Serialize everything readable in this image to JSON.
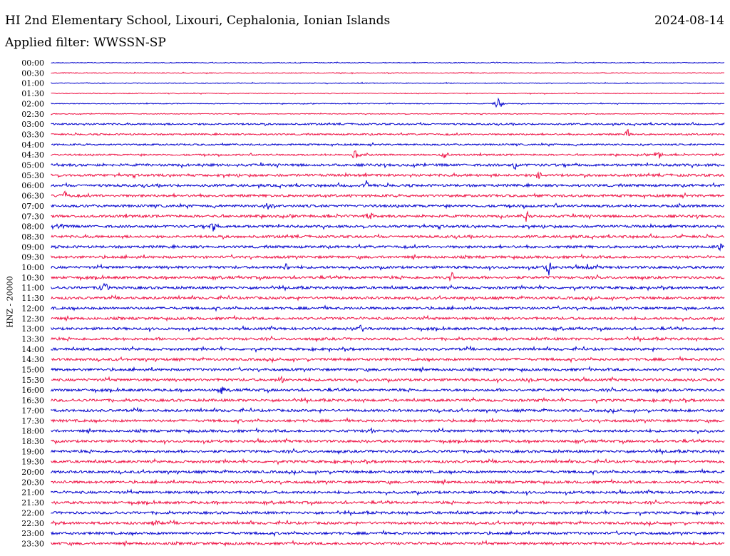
{
  "header": {
    "station": "HI 2nd Elementary School, Lixouri, Cephalonia, Ionian Islands",
    "date": "2024-08-14",
    "filter": "Applied filter: WWSSN-SP"
  },
  "chart_data": {
    "type": "line",
    "title": "HI 2nd Elementary School, Lixouri, Cephalonia, Ionian Islands",
    "ylabel": "HNZ - 20000",
    "xlabel": "",
    "grid": false,
    "colors": {
      "even": "#0000cc",
      "odd": "#ee1144"
    },
    "rows": [
      "00:00",
      "00:30",
      "01:00",
      "01:30",
      "02:00",
      "02:30",
      "03:00",
      "03:30",
      "04:00",
      "04:30",
      "05:00",
      "05:30",
      "06:00",
      "06:30",
      "07:00",
      "07:30",
      "08:00",
      "08:30",
      "09:00",
      "09:30",
      "10:00",
      "10:30",
      "11:00",
      "11:30",
      "12:00",
      "12:30",
      "13:00",
      "13:30",
      "14:00",
      "14:30",
      "15:00",
      "15:30",
      "16:00",
      "16:30",
      "17:00",
      "17:30",
      "18:00",
      "18:30",
      "19:00",
      "19:30",
      "20:00",
      "20:30",
      "21:00",
      "21:30",
      "22:00",
      "22:30",
      "23:00",
      "23:30"
    ],
    "noise_level": [
      1,
      1,
      1,
      1,
      1,
      1,
      2,
      2,
      2,
      2,
      3,
      3,
      3,
      3,
      3,
      3,
      3,
      3,
      3,
      3,
      3,
      3,
      3,
      3,
      3,
      3,
      3,
      3,
      3,
      3,
      3,
      3,
      3,
      3,
      3,
      3,
      3,
      3,
      3,
      3,
      3,
      3,
      3,
      3,
      3,
      3,
      3,
      3
    ],
    "events": [
      {
        "row": "02:00",
        "t": 0.665,
        "amp": 14
      },
      {
        "row": "03:30",
        "t": 0.857,
        "amp": 8
      },
      {
        "row": "04:30",
        "t": 0.452,
        "amp": 9
      },
      {
        "row": "04:30",
        "t": 0.585,
        "amp": 7
      },
      {
        "row": "04:30",
        "t": 0.902,
        "amp": 10
      },
      {
        "row": "05:00",
        "t": 0.69,
        "amp": 8
      },
      {
        "row": "05:30",
        "t": 0.723,
        "amp": 9
      },
      {
        "row": "06:00",
        "t": 0.468,
        "amp": 7
      },
      {
        "row": "06:30",
        "t": 0.02,
        "amp": 8
      },
      {
        "row": "07:00",
        "t": 0.32,
        "amp": 8
      },
      {
        "row": "07:30",
        "t": 0.473,
        "amp": 7
      },
      {
        "row": "07:30",
        "t": 0.707,
        "amp": 10
      },
      {
        "row": "08:00",
        "t": 0.012,
        "amp": 6
      },
      {
        "row": "08:00",
        "t": 0.24,
        "amp": 10
      },
      {
        "row": "09:00",
        "t": 0.995,
        "amp": 7
      },
      {
        "row": "10:00",
        "t": 0.35,
        "amp": 8
      },
      {
        "row": "10:00",
        "t": 0.739,
        "amp": 14
      },
      {
        "row": "10:00",
        "t": 0.797,
        "amp": 5
      },
      {
        "row": "10:30",
        "t": 0.595,
        "amp": 9
      },
      {
        "row": "11:00",
        "t": 0.079,
        "amp": 16
      },
      {
        "row": "13:00",
        "t": 0.46,
        "amp": 7
      },
      {
        "row": "15:30",
        "t": 0.342,
        "amp": 8
      },
      {
        "row": "15:30",
        "t": 0.707,
        "amp": 6
      },
      {
        "row": "16:00",
        "t": 0.253,
        "amp": 6
      },
      {
        "row": "18:00",
        "t": 0.475,
        "amp": 4
      },
      {
        "row": "22:30",
        "t": 0.154,
        "amp": 6
      }
    ]
  }
}
